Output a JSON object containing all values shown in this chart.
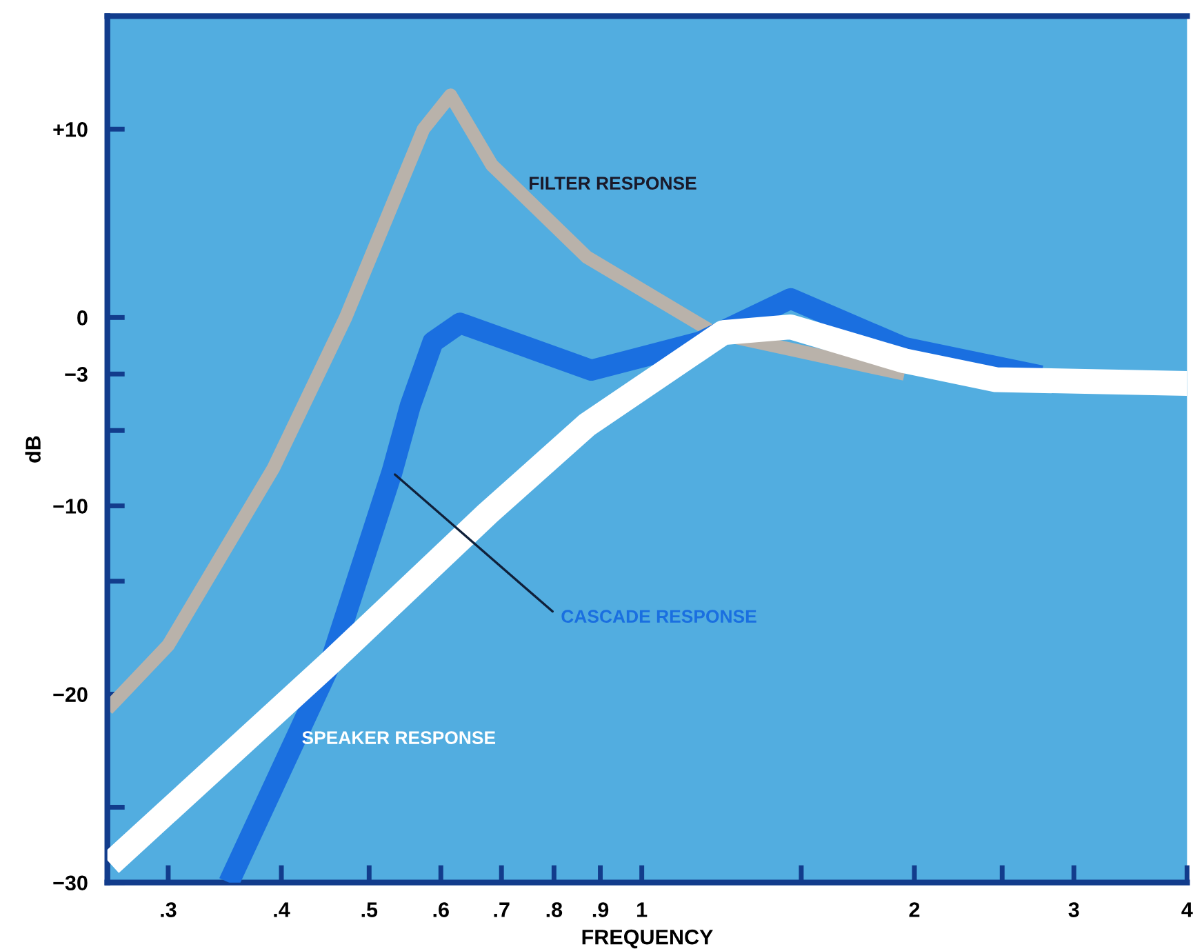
{
  "chart_data": {
    "type": "line",
    "xlabel": "FREQUENCY",
    "ylabel": "dB",
    "log": "x",
    "grid": false,
    "legend": false,
    "marker": "none",
    "line_style": "solid",
    "xlim": [
      0.257,
      4
    ],
    "ylim": [
      -30,
      16
    ],
    "xticks": [
      {
        "value": 0.3,
        "label": ".3"
      },
      {
        "value": 0.4,
        "label": ".4"
      },
      {
        "value": 0.5,
        "label": ".5"
      },
      {
        "value": 0.6,
        "label": ".6"
      },
      {
        "value": 0.7,
        "label": ".7"
      },
      {
        "value": 0.8,
        "label": ".8"
      },
      {
        "value": 0.9,
        "label": ".9"
      },
      1,
      {
        "value": 1.5,
        "label": null
      },
      2,
      {
        "value": 2.5,
        "label": null
      },
      3,
      4
    ],
    "yticks": [
      {
        "value": 10,
        "label": "+10"
      },
      0,
      {
        "value": -3,
        "label": "−3"
      },
      {
        "value": -6,
        "label": null
      },
      {
        "value": -10,
        "label": "−10"
      },
      {
        "value": -14,
        "label": null
      },
      {
        "value": -20,
        "label": "−20"
      },
      {
        "value": -26,
        "label": null
      },
      {
        "value": -30,
        "label": "−30"
      }
    ],
    "series": [
      {
        "name": "FILTER RESPONSE",
        "color": "#b9b2aa",
        "x": [
          0.257,
          0.3,
          0.392,
          0.471,
          0.574,
          0.615,
          0.683,
          0.87,
          1.2,
          1.95
        ],
        "values": [
          -20.8,
          -17.4,
          -8,
          0,
          10,
          11.8,
          8.1,
          3.2,
          -0.8,
          -3.0
        ]
      },
      {
        "name": "CASCADE RESPONSE",
        "color": "#1a6fe0",
        "x": [
          0.35,
          0.451,
          0.53,
          0.555,
          0.588,
          0.63,
          0.75,
          0.88,
          1.16,
          1.46,
          1.95,
          2.76
        ],
        "values": [
          -30,
          -18.6,
          -8.2,
          -4.7,
          -1.3,
          -0.3,
          -1.6,
          -2.8,
          -1.3,
          1.0,
          -1.6,
          -3.1
        ]
      },
      {
        "name": "SPEAKER RESPONSE",
        "color": "#ffffff",
        "x": [
          0.259,
          0.451,
          0.676,
          0.87,
          1.23,
          1.46,
          1.95,
          2.46,
          4
        ],
        "values": [
          -29,
          -18.4,
          -10.4,
          -5.7,
          -0.8,
          -0.5,
          -2.3,
          -3.3,
          -3.5
        ]
      }
    ]
  }
}
